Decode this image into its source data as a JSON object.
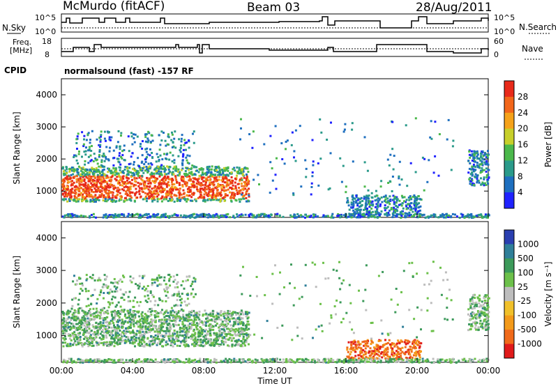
{
  "header": {
    "station": "McMurdo (fitACF)",
    "beam": "Beam 03",
    "date": "28/Aug/2011"
  },
  "top_panels": {
    "nsky_label": "N.Sky",
    "nsky_tick_hi": "10^5",
    "nsky_tick_lo": "10^0",
    "nsearch_label": "N.Search",
    "nsearch_tick_hi": "10^5",
    "nsearch_tick_lo": "10^0",
    "freq_label_1": "Freq.",
    "freq_label_2": "[MHz]",
    "freq_tick_hi": "18",
    "freq_tick_lo": "8",
    "nave_label": "Nave",
    "nave_tick_hi": "60",
    "nave_tick_lo": "0",
    "cpid_label": "CPID",
    "cpid_text": "normalsound (fast) -157 RF"
  },
  "chart_data": [
    {
      "type": "heatmap",
      "title": "",
      "xlabel": "Time UT",
      "ylabel": "Slant Range [km]",
      "x_ticks": [
        "00:00",
        "04:00",
        "08:00",
        "12:00",
        "16:00",
        "20:00",
        "00:00"
      ],
      "y_ticks": [
        "1000",
        "2000",
        "3000",
        "4000"
      ],
      "ylim": [
        180,
        4500
      ],
      "colorbar": {
        "label": "Power [dB]",
        "ticks": [
          "4",
          "8",
          "12",
          "16",
          "20",
          "24",
          "28"
        ],
        "range": [
          0,
          30
        ],
        "colors": [
          "#1f22ff",
          "#1e6fbf",
          "#2a9a8a",
          "#4bb84b",
          "#c7cf2a",
          "#f5a21a",
          "#f2661a",
          "#e82a1a"
        ]
      }
    },
    {
      "type": "heatmap",
      "title": "",
      "xlabel": "Time UT",
      "ylabel": "Slant Range [km]",
      "x_ticks": [
        "00:00",
        "04:00",
        "08:00",
        "12:00",
        "16:00",
        "20:00",
        "00:00"
      ],
      "y_ticks": [
        "1000",
        "2000",
        "3000",
        "4000"
      ],
      "ylim": [
        180,
        4500
      ],
      "colorbar": {
        "label": "Velocity [m s^-1]",
        "ticks": [
          "1000",
          "500",
          "100",
          "25",
          "-25",
          "-100",
          "-500",
          "-1000"
        ],
        "colors": [
          "#2a3fb0",
          "#2f7f99",
          "#3c9a5a",
          "#6cc04a",
          "#bdbdbd",
          "#f0c02a",
          "#f39a1a",
          "#f06a1a",
          "#e01a1a"
        ]
      }
    }
  ]
}
